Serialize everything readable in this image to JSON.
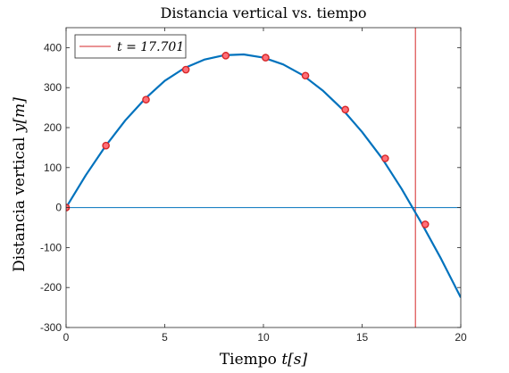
{
  "chart_data": {
    "type": "line",
    "title": "Distancia vertical vs. tiempo",
    "xlabel_text": "Tiempo",
    "xlabel_math": "t[s]",
    "ylabel_text": "Distancia vertical",
    "ylabel_math": "y[m]",
    "xlim": [
      0,
      20
    ],
    "ylim": [
      -300,
      450
    ],
    "xticks": [
      0,
      5,
      10,
      15,
      20
    ],
    "yticks": [
      -300,
      -200,
      -100,
      0,
      100,
      200,
      300,
      400
    ],
    "grid": false,
    "legend_position": "top-left",
    "legend": [
      {
        "label": "t = 17.701",
        "color": "#d62728"
      }
    ],
    "curve": {
      "color": "#0072bd",
      "x": [
        0,
        1,
        2,
        3,
        4,
        5,
        6,
        7,
        8,
        9,
        10,
        11,
        12,
        13,
        14,
        15,
        16,
        17,
        18,
        19,
        20
      ],
      "y": [
        0,
        81,
        154,
        218,
        272,
        317,
        349,
        370,
        381,
        383,
        375,
        358,
        331,
        293,
        246,
        189,
        124,
        47,
        -38,
        -128,
        -225
      ]
    },
    "markers": {
      "edge_color": "#d62728",
      "face_color": "#ff6f78",
      "x": [
        0,
        2.02,
        4.05,
        6.07,
        8.09,
        10.11,
        12.13,
        14.15,
        16.17,
        18.2
      ],
      "y": [
        0,
        155,
        270,
        345,
        380,
        375,
        330,
        245,
        123,
        -42
      ]
    },
    "vertical_line": {
      "x": 17.701,
      "color": "#d62728"
    },
    "horizontal_line": {
      "y": 0,
      "color": "#0072bd"
    }
  }
}
